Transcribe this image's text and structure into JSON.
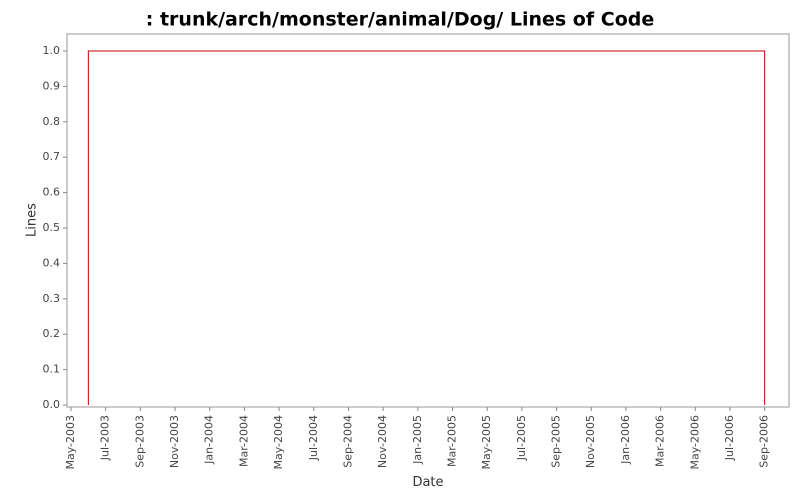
{
  "chart_data": {
    "type": "line",
    "title": ": trunk/arch/monster/animal/Dog/ Lines of Code",
    "x_label": "Date",
    "y_label": "Lines",
    "x": [
      "Jun-2003",
      "Jun-2003",
      "Sep-2006",
      "Sep-2006"
    ],
    "series": [
      {
        "name": "Lines",
        "color": "#c00000",
        "values": [
          0,
          1,
          1,
          0
        ]
      }
    ],
    "xlim": [
      "May-2003",
      "Oct-2006"
    ],
    "xticks": [
      "May-2003",
      "Jul-2003",
      "Sep-2003",
      "Nov-2003",
      "Jan-2004",
      "Mar-2004",
      "May-2004",
      "Jul-2004",
      "Sep-2004",
      "Nov-2004",
      "Jan-2005",
      "Mar-2005",
      "May-2005",
      "Jul-2005",
      "Sep-2005",
      "Nov-2005",
      "Jan-2006",
      "Mar-2006",
      "May-2006",
      "Jul-2006",
      "Sep-2006"
    ],
    "ylim": [
      0,
      1
    ],
    "yticks": [
      {
        "value": 0,
        "label": "0.0"
      },
      {
        "value": 0.1,
        "label": "0.1"
      },
      {
        "value": 0.2,
        "label": "0.2"
      },
      {
        "value": 0.3,
        "label": "0.3"
      },
      {
        "value": 0.4,
        "label": "0.4"
      },
      {
        "value": 0.5,
        "label": "0.5"
      },
      {
        "value": 0.6,
        "label": "0.6"
      },
      {
        "value": 0.7,
        "label": "0.7"
      },
      {
        "value": 0.8,
        "label": "0.8"
      },
      {
        "value": 0.9,
        "label": "0.9"
      },
      {
        "value": 1,
        "label": "1.0"
      }
    ],
    "grid": false
  }
}
